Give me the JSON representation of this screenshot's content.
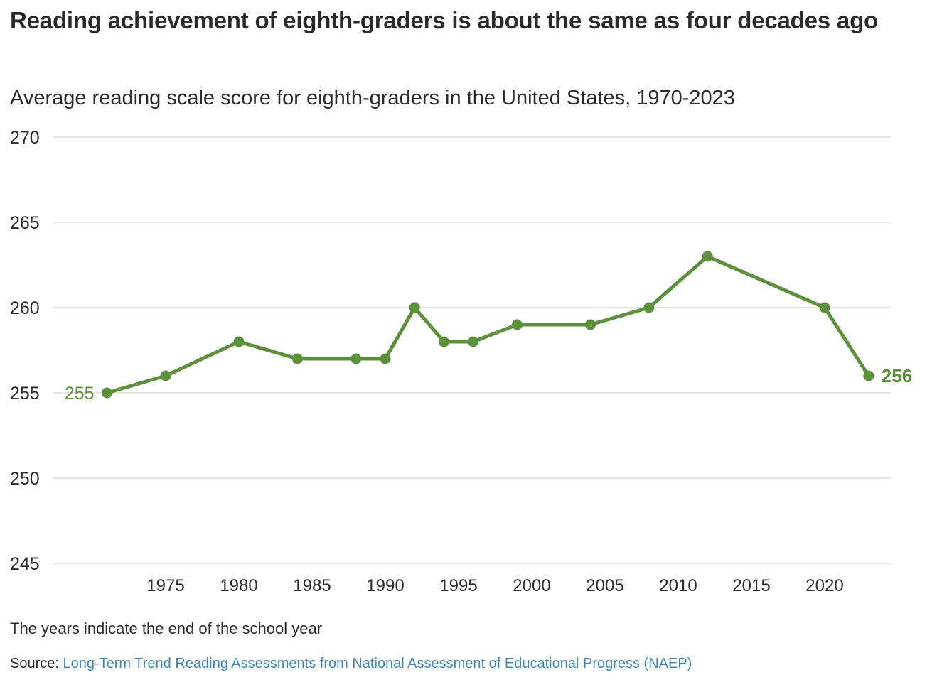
{
  "header": {
    "title": "Reading achievement of eighth-graders is about the same as four decades ago",
    "subtitle": "Average reading scale score for eighth-graders in the United States, 1970-2023"
  },
  "footer": {
    "note": "The years indicate the end of the school year",
    "source_label": "Source:",
    "source_link": "Long-Term Trend Reading Assessments from National Assessment of Educational Progress (NAEP)"
  },
  "colors": {
    "line": "#5b9138",
    "grid": "#dcdcdc",
    "text": "#2a2a2a",
    "link": "#3d85c6"
  },
  "chart_data": {
    "type": "line",
    "title": "Reading achievement of eighth-graders is about the same as four decades ago",
    "subtitle": "Average reading scale score for eighth-graders in the United States, 1970-2023",
    "xlabel": "",
    "ylabel": "",
    "xlim": [
      1967,
      2025
    ],
    "ylim": [
      245,
      270
    ],
    "grid": true,
    "x_ticks": [
      "1975",
      "1980",
      "1985",
      "1990",
      "1995",
      "2000",
      "2005",
      "2010",
      "2015",
      "2020"
    ],
    "y_ticks": [
      "270",
      "265",
      "260",
      "255",
      "250",
      "245"
    ],
    "series": [
      {
        "name": "Average reading scale score",
        "x": [
          1971,
          1975,
          1980,
          1984,
          1988,
          1990,
          1992,
          1994,
          1996,
          1999,
          2004,
          2008,
          2012,
          2020,
          2023
        ],
        "values": [
          255,
          256,
          258,
          257,
          257,
          257,
          260,
          258,
          258,
          259,
          259,
          260,
          263,
          260,
          256
        ]
      }
    ],
    "annotations": {
      "start_label": "255",
      "end_label": "256"
    }
  }
}
